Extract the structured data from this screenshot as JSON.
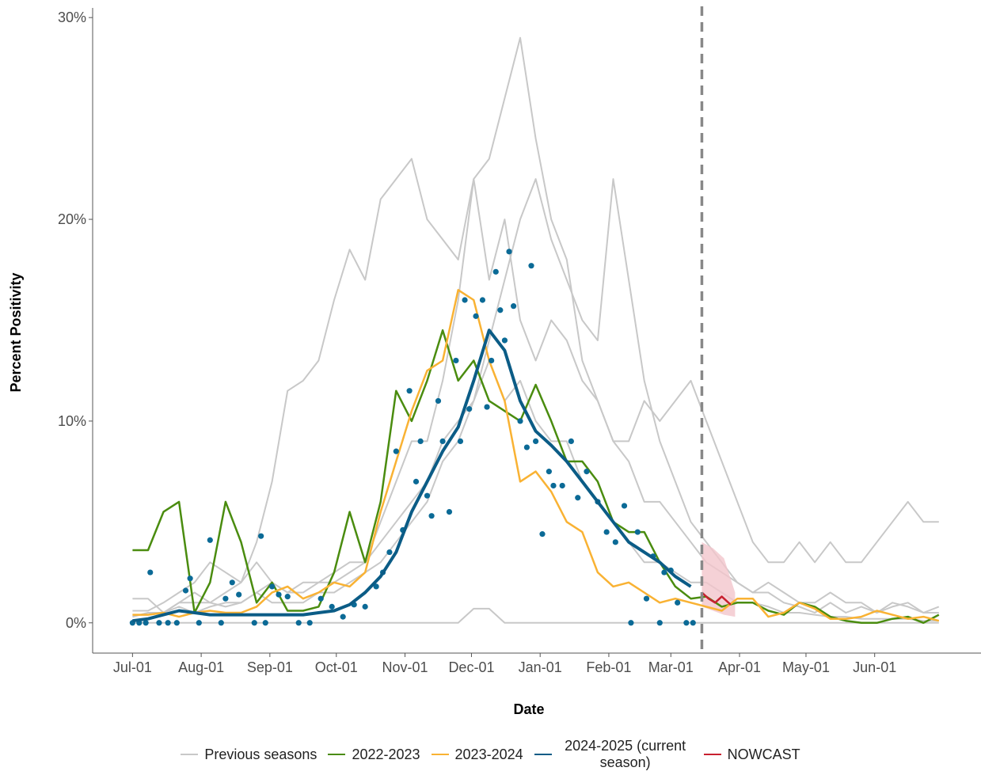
{
  "chart_data": {
    "type": "line",
    "xlabel": "Date",
    "ylabel": "Percent Positivity",
    "xlim": [
      -18,
      383
    ],
    "ylim": [
      -1.5,
      30.4
    ],
    "xticks": [
      {
        "value": 0,
        "label": "Jul-01"
      },
      {
        "value": 31,
        "label": "Aug-01"
      },
      {
        "value": 62,
        "label": "Sep-01"
      },
      {
        "value": 92,
        "label": "Oct-01"
      },
      {
        "value": 123,
        "label": "Nov-01"
      },
      {
        "value": 153,
        "label": "Dec-01"
      },
      {
        "value": 184,
        "label": "Jan-01"
      },
      {
        "value": 215,
        "label": "Feb-01"
      },
      {
        "value": 243,
        "label": "Mar-01"
      },
      {
        "value": 274,
        "label": "Apr-01"
      },
      {
        "value": 304,
        "label": "May-01"
      },
      {
        "value": 335,
        "label": "Jun-01"
      }
    ],
    "yticks": [
      {
        "value": 0,
        "label": "0%"
      },
      {
        "value": 10,
        "label": "10%"
      },
      {
        "value": 20,
        "label": "20%"
      },
      {
        "value": 30,
        "label": "30%"
      }
    ],
    "vline_x": 257,
    "x": [
      0,
      7,
      14,
      21,
      28,
      35,
      42,
      49,
      56,
      63,
      70,
      77,
      84,
      91,
      98,
      105,
      112,
      119,
      126,
      133,
      140,
      147,
      154,
      161,
      168,
      175,
      182,
      189,
      196,
      203,
      210,
      217,
      224,
      231,
      238,
      245,
      252,
      259,
      266,
      273,
      280,
      287,
      294,
      301,
      308,
      315,
      322,
      329,
      336,
      343,
      350,
      357,
      364
    ],
    "series": [
      {
        "name": "Previous seasons",
        "color": "#c8c8c8",
        "values": [
          [
            1.2,
            1.2,
            0.5,
            1,
            1.5,
            1,
            1.5,
            2,
            3,
            2,
            1.5,
            2,
            2,
            2.5,
            3,
            3,
            5,
            7,
            9,
            9,
            12,
            16,
            22,
            23,
            26,
            29,
            24,
            20,
            18,
            13,
            11,
            9,
            8,
            6,
            6,
            5,
            4,
            3,
            2.5,
            2,
            1.5,
            1.5,
            1,
            0.8,
            0.5,
            1,
            0.5,
            0.8,
            0.5,
            1,
            0.8,
            0.5,
            0.8
          ],
          [
            0.6,
            0.6,
            1,
            1.5,
            2,
            3,
            2.5,
            2,
            4,
            7,
            11.5,
            12,
            13,
            16,
            18.5,
            17,
            21,
            22,
            23,
            20,
            19,
            18,
            22,
            17,
            20,
            15,
            13,
            15,
            14,
            12,
            11,
            9,
            9,
            11,
            10,
            11,
            12,
            10,
            8,
            6,
            4,
            3,
            3,
            4,
            3,
            4,
            3,
            3,
            4,
            5,
            6,
            5,
            5
          ],
          [
            0.4,
            0.4,
            0.5,
            1,
            1,
            1,
            0.8,
            1,
            1.5,
            1,
            1,
            1,
            1.5,
            1.5,
            2,
            2.5,
            3,
            4,
            5,
            6,
            8,
            9,
            11,
            14,
            17,
            20,
            22,
            19,
            17,
            15,
            14,
            22,
            17,
            12,
            9,
            7,
            5,
            4,
            3,
            2,
            1.5,
            2,
            1.5,
            1,
            1,
            1.5,
            1,
            1,
            0.5,
            0.8,
            1,
            0.5,
            0.5
          ],
          [
            0,
            0,
            0,
            0,
            0,
            0,
            0,
            0,
            0,
            0,
            0,
            0,
            0,
            0,
            0,
            0,
            0,
            0,
            0,
            0,
            0,
            0,
            0.7,
            0.7,
            0,
            0,
            0,
            0,
            0,
            0,
            0,
            0,
            0,
            0,
            0,
            0,
            0,
            0,
            0,
            0,
            0,
            0,
            0,
            0,
            0,
            0,
            0,
            0,
            0,
            0,
            0,
            0,
            0
          ],
          [
            0.3,
            0.5,
            0.5,
            0.8,
            0.5,
            0.8,
            1,
            1,
            1.5,
            2,
            1.5,
            1.5,
            2,
            2,
            2.5,
            3,
            4,
            5,
            6,
            7,
            9,
            10,
            11,
            13,
            11,
            12,
            10,
            9,
            9,
            7,
            6,
            5,
            4,
            3,
            3,
            2.5,
            2,
            2,
            1.5,
            1,
            1,
            0.8,
            0.5,
            0.5,
            0.4,
            0.3,
            0.3,
            0.2,
            0.2,
            0.2,
            0.2,
            0.1,
            0.1
          ]
        ]
      },
      {
        "name": "2022-2023",
        "color": "#4a8c0f",
        "values": [
          3.6,
          3.6,
          5.5,
          6,
          0.5,
          2,
          6,
          4,
          1,
          2,
          0.6,
          0.6,
          0.8,
          2.5,
          5.5,
          3,
          6,
          11.5,
          10,
          12,
          14.5,
          12,
          13,
          11,
          10.5,
          10,
          11.8,
          10,
          8,
          8,
          7,
          5,
          4.5,
          4.5,
          3,
          1.8,
          1.2,
          1.3,
          0.8,
          1,
          1,
          0.6,
          0.4,
          1,
          0.8,
          0.3,
          0.1,
          0,
          0,
          0.2,
          0.3,
          0,
          0.4
        ]
      },
      {
        "name": "2023-2024",
        "color": "#f9b233",
        "values": [
          0.4,
          0.4,
          0.5,
          0.3,
          0.5,
          0.6,
          0.5,
          0.5,
          0.8,
          1.5,
          1.8,
          1.2,
          1.5,
          2,
          1.8,
          2.5,
          5.5,
          8,
          10.5,
          12.5,
          13,
          16.5,
          16,
          13,
          11,
          7,
          7.5,
          6.5,
          5,
          4.5,
          2.5,
          1.8,
          2,
          1.5,
          1,
          1.2,
          1,
          0.8,
          0.6,
          1.2,
          1.2,
          0.3,
          0.5,
          1,
          0.7,
          0.2,
          0.2,
          0.3,
          0.6,
          0.4,
          0.2,
          0.3,
          0.1
        ]
      },
      {
        "name": "2024-2025 (current season)",
        "color": "#0b5c86",
        "values": [
          0.1,
          0.2,
          0.4,
          0.6,
          0.5,
          0.4,
          0.4,
          0.4,
          0.4,
          0.4,
          0.4,
          0.4,
          0.5,
          0.6,
          0.9,
          1.5,
          2.3,
          3.5,
          5.5,
          7,
          8.5,
          9.7,
          12,
          14.5,
          13.5,
          11,
          9.5,
          8.8,
          8,
          7,
          6,
          5,
          4,
          3.5,
          3,
          2.3,
          1.8,
          null,
          null,
          null,
          null,
          null,
          null,
          null,
          null,
          null,
          null,
          null,
          null,
          null,
          null,
          null,
          null
        ]
      },
      {
        "name": "NOWCAST",
        "color": "#c8202f",
        "x": [
          257,
          260,
          263,
          266,
          270
        ],
        "values": [
          1.5,
          1.2,
          1,
          1.3,
          0.9
        ],
        "band": {
          "color": "#f3c5cc",
          "x": [
            257,
            262,
            267,
            272
          ],
          "low": [
            0.8,
            0.6,
            0.4,
            0.3
          ],
          "high": [
            4,
            3.7,
            3.2,
            1.5
          ]
        }
      }
    ],
    "points": {
      "color": "#0b6a96",
      "x": [
        0,
        3,
        6,
        8,
        12,
        16,
        20,
        24,
        26,
        30,
        35,
        40,
        42,
        45,
        48,
        55,
        58,
        60,
        63,
        66,
        70,
        75,
        80,
        85,
        90,
        95,
        100,
        105,
        110,
        113,
        116,
        119,
        122,
        125,
        128,
        130,
        133,
        135,
        138,
        140,
        143,
        146,
        148,
        150,
        152,
        155,
        158,
        160,
        162,
        164,
        166,
        168,
        170,
        172,
        175,
        178,
        180,
        182,
        185,
        188,
        190,
        194,
        198,
        201,
        205,
        210,
        214,
        218,
        222,
        225,
        228,
        232,
        235,
        238,
        240,
        243,
        246,
        250,
        253
      ],
      "values": [
        0,
        0,
        0,
        2.5,
        0,
        0,
        0,
        1.6,
        2.2,
        0,
        4.1,
        0,
        1.2,
        2,
        1.4,
        0,
        4.3,
        0,
        1.8,
        1.4,
        1.3,
        0,
        0,
        1.2,
        0.8,
        0.3,
        0.9,
        0.8,
        1.8,
        2.5,
        3.5,
        8.5,
        4.6,
        11.5,
        7,
        9,
        6.3,
        5.3,
        11,
        9,
        5.5,
        13,
        9,
        16,
        10.6,
        15.2,
        16,
        10.7,
        13,
        17.4,
        15.5,
        14,
        18.4,
        15.7,
        10,
        8.7,
        17.7,
        9,
        4.4,
        7.5,
        6.8,
        6.8,
        9,
        6.2,
        7.5,
        6,
        4.5,
        4,
        5.8,
        0,
        4.5,
        1.2,
        3.3,
        0,
        2.5,
        2.6,
        1,
        0,
        0
      ]
    }
  }
}
